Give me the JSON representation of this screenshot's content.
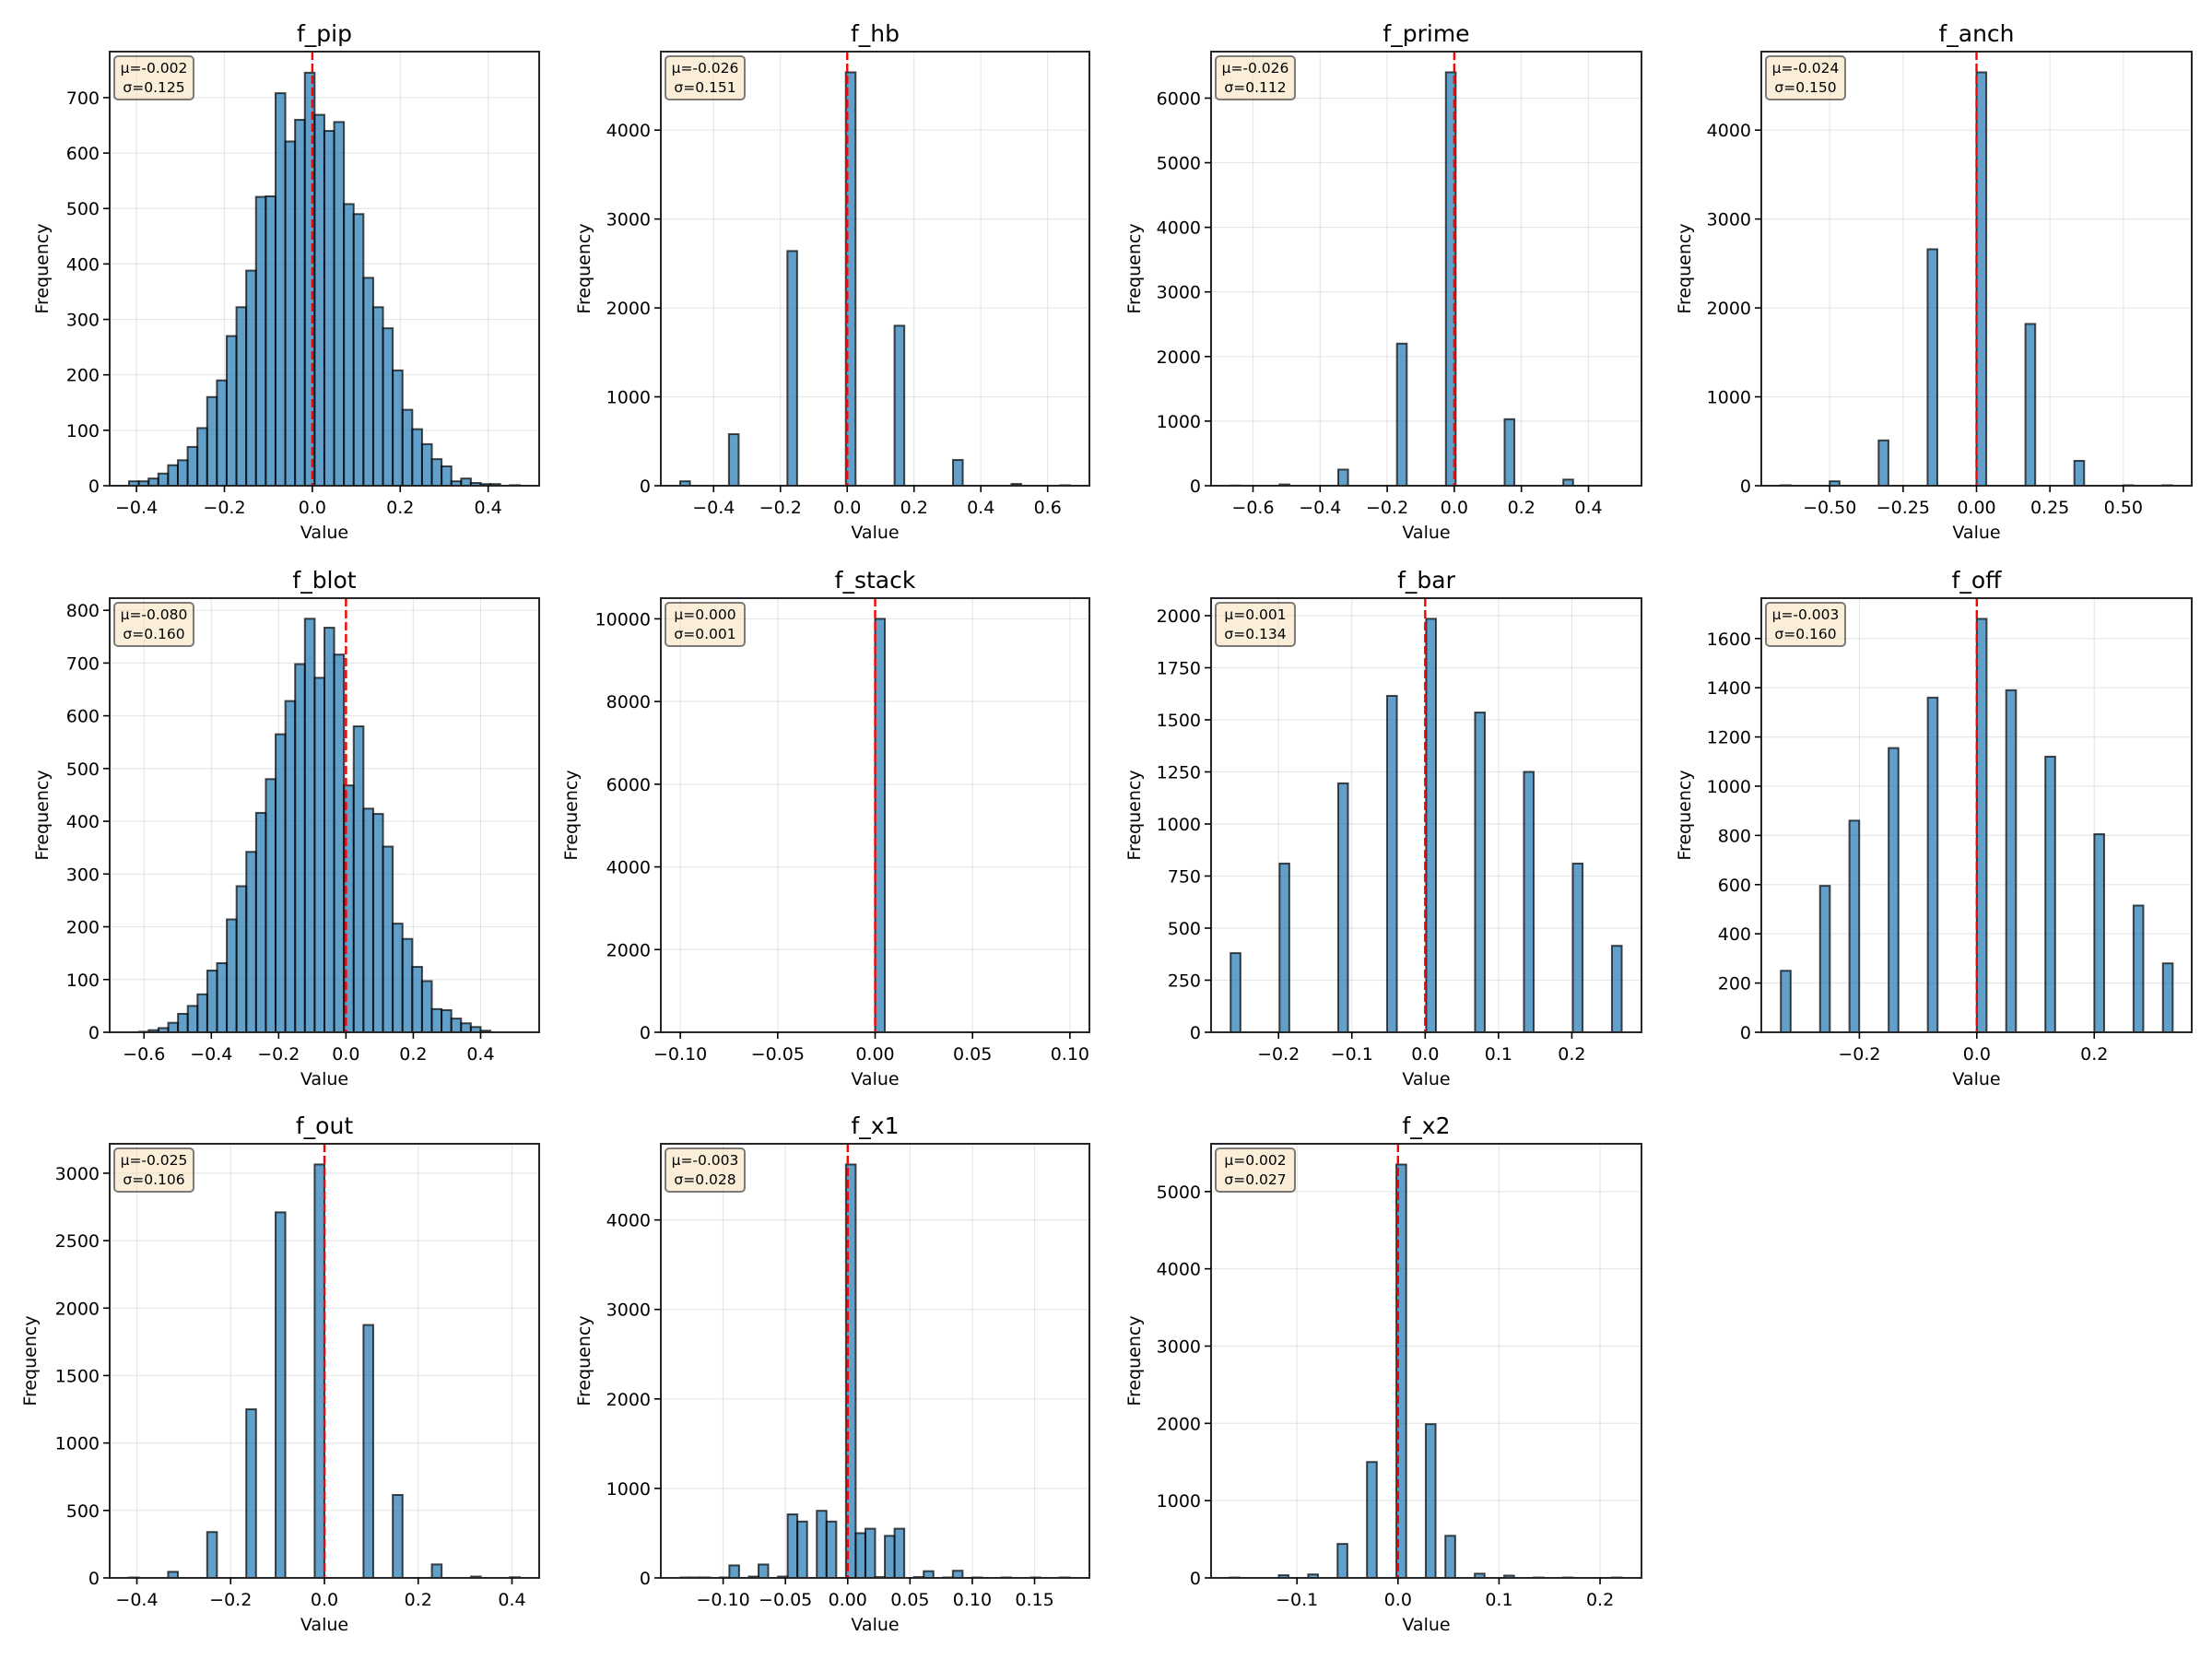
{
  "chart_data": [
    {
      "type": "bar",
      "title": "f_pip",
      "xlabel": "Value",
      "ylabel": "Frequency",
      "stats": {
        "mean": "μ=-0.002",
        "std": "σ=0.125"
      },
      "reference_line_x": 0,
      "bin_start": -0.417,
      "bin_width": 0.02222,
      "counts": [
        8,
        8,
        13,
        22,
        37,
        46,
        70,
        104,
        160,
        190,
        270,
        322,
        388,
        521,
        522,
        708,
        621,
        660,
        745,
        669,
        640,
        656,
        508,
        490,
        375,
        322,
        284,
        208,
        137,
        102,
        75,
        48,
        35,
        8,
        13,
        5,
        3,
        3,
        0,
        1
      ],
      "xlim": [
        -0.461,
        0.516
      ],
      "ylim": [
        0,
        783
      ],
      "xticks": [
        -0.4,
        -0.2,
        0.0,
        0.2,
        0.4
      ],
      "xtick_labels": [
        "−0.4",
        "−0.2",
        "0.0",
        "0.2",
        "0.4"
      ],
      "yticks": [
        0,
        100,
        200,
        300,
        400,
        500,
        600,
        700
      ],
      "ytick_labels": [
        "0",
        "100",
        "200",
        "300",
        "400",
        "500",
        "600",
        "700"
      ],
      "grid": true
    },
    {
      "type": "bar",
      "title": "f_hb",
      "xlabel": "Value",
      "ylabel": "Frequency",
      "stats": {
        "mean": "μ=-0.026",
        "std": "σ=0.151"
      },
      "reference_line_x": 0,
      "bin_start": -0.5,
      "bin_width": 0.029167,
      "counts": [
        50,
        0,
        0,
        0,
        0,
        580,
        0,
        0,
        0,
        0,
        0,
        2640,
        0,
        0,
        0,
        0,
        0,
        4650,
        0,
        0,
        0,
        0,
        1800,
        0,
        0,
        0,
        0,
        0,
        290,
        0,
        0,
        0,
        0,
        0,
        20,
        0,
        0,
        0,
        0,
        5
      ],
      "xlim": [
        -0.558,
        0.725
      ],
      "ylim": [
        0,
        4883
      ],
      "xticks": [
        -0.4,
        -0.2,
        0.0,
        0.2,
        0.4,
        0.6
      ],
      "xtick_labels": [
        "−0.4",
        "−0.2",
        "0.0",
        "0.2",
        "0.4",
        "0.6"
      ],
      "yticks": [
        0,
        1000,
        2000,
        3000,
        4000
      ],
      "ytick_labels": [
        "0",
        "1000",
        "2000",
        "3000",
        "4000"
      ],
      "grid": true
    },
    {
      "type": "bar",
      "title": "f_prime",
      "xlabel": "Value",
      "ylabel": "Frequency",
      "stats": {
        "mean": "μ=-0.026",
        "std": "σ=0.112"
      },
      "reference_line_x": 0,
      "bin_start": -0.6667,
      "bin_width": 0.029167,
      "counts": [
        3,
        0,
        0,
        0,
        0,
        20,
        0,
        0,
        0,
        0,
        0,
        250,
        0,
        0,
        0,
        0,
        0,
        2200,
        0,
        0,
        0,
        0,
        6400,
        0,
        0,
        0,
        0,
        0,
        1030,
        0,
        0,
        0,
        0,
        0,
        95,
        0,
        0,
        0,
        0,
        0
      ],
      "xlim": [
        -0.725,
        0.558
      ],
      "ylim": [
        0,
        6720
      ],
      "xticks": [
        -0.6,
        -0.4,
        -0.2,
        0.0,
        0.2,
        0.4
      ],
      "xtick_labels": [
        "−0.6",
        "−0.4",
        "−0.2",
        "0.0",
        "0.2",
        "0.4"
      ],
      "yticks": [
        0,
        1000,
        2000,
        3000,
        4000,
        5000,
        6000
      ],
      "ytick_labels": [
        "0",
        "1000",
        "2000",
        "3000",
        "4000",
        "5000",
        "6000"
      ],
      "grid": true
    },
    {
      "type": "bar",
      "title": "f_anch",
      "xlabel": "Value",
      "ylabel": "Frequency",
      "stats": {
        "mean": "μ=-0.024",
        "std": "σ=0.150"
      },
      "reference_line_x": 0,
      "bin_start": -0.6667,
      "bin_width": 0.033333,
      "counts": [
        5,
        0,
        0,
        0,
        0,
        50,
        0,
        0,
        0,
        0,
        510,
        0,
        0,
        0,
        0,
        2660,
        0,
        0,
        0,
        0,
        4650,
        0,
        0,
        0,
        0,
        1820,
        0,
        0,
        0,
        0,
        280,
        0,
        0,
        0,
        0,
        5,
        0,
        0,
        0,
        5
      ],
      "xlim": [
        -0.733,
        0.733
      ],
      "ylim": [
        0,
        4883
      ],
      "xticks": [
        -0.5,
        -0.25,
        0.0,
        0.25,
        0.5
      ],
      "xtick_labels": [
        "−0.50",
        "−0.25",
        "0.00",
        "0.25",
        "0.50"
      ],
      "yticks": [
        0,
        1000,
        2000,
        3000,
        4000
      ],
      "ytick_labels": [
        "0",
        "1000",
        "2000",
        "3000",
        "4000"
      ],
      "grid": true
    },
    {
      "type": "bar",
      "title": "f_blot",
      "xlabel": "Value",
      "ylabel": "Frequency",
      "stats": {
        "mean": "μ=-0.080",
        "std": "σ=0.160"
      },
      "reference_line_x": 0,
      "bin_start": -0.644,
      "bin_width": 0.029,
      "counts": [
        0,
        1,
        4,
        8,
        18,
        35,
        50,
        72,
        117,
        131,
        214,
        277,
        342,
        416,
        480,
        565,
        628,
        698,
        784,
        672,
        767,
        716,
        468,
        580,
        424,
        414,
        352,
        206,
        177,
        124,
        97,
        44,
        42,
        26,
        17,
        10,
        3,
        0,
        0,
        0
      ],
      "xlim": [
        -0.702,
        0.574
      ],
      "ylim": [
        0,
        823
      ],
      "xticks": [
        -0.6,
        -0.4,
        -0.2,
        0.0,
        0.2,
        0.4
      ],
      "xtick_labels": [
        "−0.6",
        "−0.4",
        "−0.2",
        "0.0",
        "0.2",
        "0.4"
      ],
      "yticks": [
        0,
        100,
        200,
        300,
        400,
        500,
        600,
        700,
        800
      ],
      "ytick_labels": [
        "0",
        "100",
        "200",
        "300",
        "400",
        "500",
        "600",
        "700",
        "800"
      ],
      "grid": true
    },
    {
      "type": "bar",
      "title": "f_stack",
      "xlabel": "Value",
      "ylabel": "Frequency",
      "stats": {
        "mean": "μ=0.000",
        "std": "σ=0.001"
      },
      "reference_line_x": 0,
      "bin_start": -0.1,
      "bin_width": 0.005,
      "counts": [
        0,
        0,
        0,
        0,
        0,
        0,
        0,
        0,
        0,
        0,
        0,
        0,
        0,
        0,
        0,
        0,
        0,
        0,
        0,
        0,
        10000,
        0,
        0,
        0,
        0,
        0,
        0,
        0,
        0,
        0,
        0,
        0,
        0,
        0,
        0,
        0,
        0,
        0,
        0,
        0
      ],
      "xlim": [
        -0.11,
        0.11
      ],
      "ylim": [
        0,
        10500
      ],
      "xticks": [
        -0.1,
        -0.05,
        0.0,
        0.05,
        0.1
      ],
      "xtick_labels": [
        "−0.10",
        "−0.05",
        "0.00",
        "0.05",
        "0.10"
      ],
      "yticks": [
        0,
        2000,
        4000,
        6000,
        8000,
        10000
      ],
      "ytick_labels": [
        "0",
        "2000",
        "4000",
        "6000",
        "8000",
        "10000"
      ],
      "grid": true
    },
    {
      "type": "bar",
      "title": "f_bar",
      "xlabel": "Value",
      "ylabel": "Frequency",
      "stats": {
        "mean": "μ=0.001",
        "std": "σ=0.134"
      },
      "reference_line_x": 0,
      "bin_start": -0.2653,
      "bin_width": 0.013333,
      "counts": [
        380,
        0,
        0,
        0,
        0,
        810,
        0,
        0,
        0,
        0,
        0,
        1195,
        0,
        0,
        0,
        0,
        1615,
        0,
        0,
        0,
        1985,
        0,
        0,
        0,
        0,
        1535,
        0,
        0,
        0,
        0,
        1250,
        0,
        0,
        0,
        0,
        810,
        0,
        0,
        0,
        415
      ],
      "xlim": [
        -0.292,
        0.295
      ],
      "ylim": [
        0,
        2084
      ],
      "xticks": [
        -0.2,
        -0.1,
        0.0,
        0.1,
        0.2
      ],
      "xtick_labels": [
        "−0.2",
        "−0.1",
        "0.0",
        "0.1",
        "0.2"
      ],
      "yticks": [
        0,
        250,
        500,
        750,
        1000,
        1250,
        1500,
        1750,
        2000
      ],
      "ytick_labels": [
        "0",
        "250",
        "500",
        "750",
        "1000",
        "1250",
        "1500",
        "1750",
        "2000"
      ],
      "grid": true
    },
    {
      "type": "bar",
      "title": "f_off",
      "xlabel": "Value",
      "ylabel": "Frequency",
      "stats": {
        "mean": "μ=-0.003",
        "std": "σ=0.160"
      },
      "reference_line_x": 0,
      "bin_start": -0.3337,
      "bin_width": 0.016683,
      "counts": [
        250,
        0,
        0,
        0,
        595,
        0,
        0,
        860,
        0,
        0,
        0,
        1155,
        0,
        0,
        0,
        1360,
        0,
        0,
        0,
        0,
        1680,
        0,
        0,
        1390,
        0,
        0,
        0,
        1120,
        0,
        0,
        0,
        0,
        805,
        0,
        0,
        0,
        515,
        0,
        0,
        280
      ],
      "xlim": [
        -0.367,
        0.366
      ],
      "ylim": [
        0,
        1764
      ],
      "xticks": [
        -0.2,
        0.0,
        0.2
      ],
      "xtick_labels": [
        "−0.2",
        "0.0",
        "0.2"
      ],
      "yticks": [
        0,
        200,
        400,
        600,
        800,
        1000,
        1200,
        1400,
        1600
      ],
      "ytick_labels": [
        "0",
        "200",
        "400",
        "600",
        "800",
        "1000",
        "1200",
        "1400",
        "1600"
      ],
      "grid": true
    },
    {
      "type": "bar",
      "title": "f_out",
      "xlabel": "Value",
      "ylabel": "Frequency",
      "stats": {
        "mean": "μ=-0.025",
        "std": "σ=0.106"
      },
      "reference_line_x": 0,
      "bin_start": -0.4167,
      "bin_width": 0.020833,
      "counts": [
        3,
        0,
        0,
        0,
        45,
        0,
        0,
        0,
        340,
        0,
        0,
        0,
        1250,
        0,
        0,
        2710,
        0,
        0,
        0,
        3065,
        0,
        0,
        0,
        0,
        1875,
        0,
        0,
        615,
        0,
        0,
        0,
        100,
        0,
        0,
        0,
        10,
        0,
        0,
        0,
        5
      ],
      "xlim": [
        -0.458,
        0.458
      ],
      "ylim": [
        0,
        3218
      ],
      "xticks": [
        -0.4,
        -0.2,
        0.0,
        0.2,
        0.4
      ],
      "xtick_labels": [
        "−0.4",
        "−0.2",
        "0.0",
        "0.2",
        "0.4"
      ],
      "yticks": [
        0,
        500,
        1000,
        1500,
        2000,
        2500,
        3000
      ],
      "ytick_labels": [
        "0",
        "500",
        "1000",
        "1500",
        "2000",
        "2500",
        "3000"
      ],
      "grid": true
    },
    {
      "type": "bar",
      "title": "f_x1",
      "xlabel": "Value",
      "ylabel": "Frequency",
      "stats": {
        "mean": "μ=-0.003",
        "std": "σ=0.028"
      },
      "reference_line_x": 0,
      "bin_start": -0.134,
      "bin_width": 0.0078,
      "counts": [
        5,
        5,
        5,
        0,
        5,
        140,
        0,
        15,
        150,
        0,
        15,
        710,
        630,
        0,
        750,
        630,
        0,
        4620,
        500,
        550,
        10,
        470,
        550,
        0,
        10,
        75,
        0,
        5,
        80,
        0,
        5,
        0,
        0,
        5,
        0,
        0,
        5,
        0,
        0,
        5
      ],
      "xlim": [
        -0.15,
        0.194
      ],
      "ylim": [
        0,
        4851
      ],
      "xticks": [
        -0.1,
        -0.05,
        0.0,
        0.05,
        0.1,
        0.15
      ],
      "xtick_labels": [
        "−0.10",
        "−0.05",
        "0.00",
        "0.05",
        "0.10",
        "0.15"
      ],
      "yticks": [
        0,
        1000,
        2000,
        3000,
        4000
      ],
      "ytick_labels": [
        "0",
        "1000",
        "2000",
        "3000",
        "4000"
      ],
      "grid": true
    },
    {
      "type": "bar",
      "title": "f_x2",
      "xlabel": "Value",
      "ylabel": "Frequency",
      "stats": {
        "mean": "μ=0.002",
        "std": "σ=0.027"
      },
      "reference_line_x": 0,
      "bin_start": -0.1665,
      "bin_width": 0.0097,
      "counts": [
        5,
        0,
        0,
        0,
        0,
        35,
        0,
        0,
        45,
        0,
        0,
        440,
        0,
        0,
        1500,
        0,
        0,
        5350,
        0,
        0,
        1990,
        0,
        545,
        0,
        0,
        55,
        0,
        0,
        30,
        0,
        0,
        5,
        0,
        0,
        5,
        0,
        0,
        0,
        0,
        5
      ],
      "xlim": [
        -0.185,
        0.241
      ],
      "ylim": [
        0,
        5618
      ],
      "xticks": [
        -0.1,
        0.0,
        0.1,
        0.2
      ],
      "xtick_labels": [
        "−0.1",
        "0.0",
        "0.1",
        "0.2"
      ],
      "yticks": [
        0,
        1000,
        2000,
        3000,
        4000,
        5000
      ],
      "ytick_labels": [
        "0",
        "1000",
        "2000",
        "3000",
        "4000",
        "5000"
      ],
      "grid": true
    }
  ],
  "colors": {
    "bar_fill": "#1f77b4",
    "reference_line": "#ff0000",
    "stat_box": "#f5deb3"
  }
}
